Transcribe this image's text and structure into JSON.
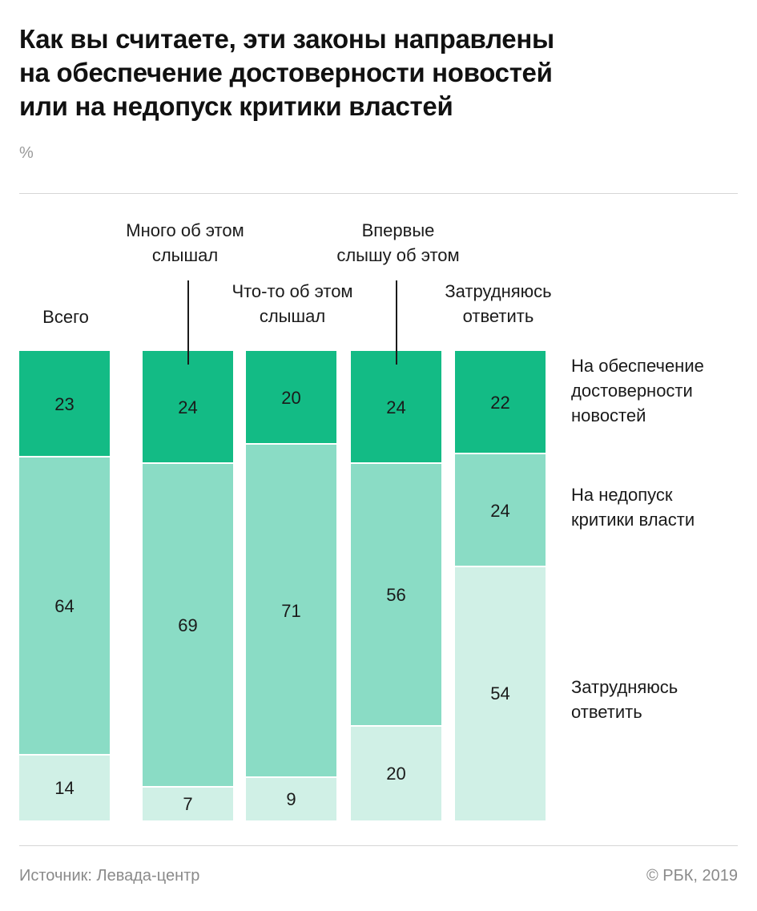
{
  "header": {
    "title_lines": [
      "Как вы считаете,  эти законы направлены",
      "на обеспечение достоверности новостей",
      "или на недопуск критики властей"
    ],
    "unit": "%"
  },
  "footer": {
    "source": "Источник: Левада-центр",
    "copyright": "© РБК, 2019"
  },
  "chart_data": {
    "type": "bar",
    "stacked": true,
    "orientation": "vertical",
    "categories": [
      [
        "Всего"
      ],
      [
        "Много об этом",
        "слышал"
      ],
      [
        "Что-то об этом",
        "слышал"
      ],
      [
        "Впервые",
        "слышу об этом"
      ],
      [
        "Затрудняюсь",
        "ответить"
      ]
    ],
    "series": [
      {
        "name": [
          "На обеспечение",
          "достоверности",
          "новостей"
        ],
        "values": [
          23,
          24,
          20,
          24,
          22
        ],
        "color": "#13bb85"
      },
      {
        "name": [
          "На недопуск",
          "критики власти"
        ],
        "values": [
          64,
          69,
          71,
          56,
          24
        ],
        "color": "#8adcc5"
      },
      {
        "name": [
          "Затрудняюсь",
          "ответить"
        ],
        "values": [
          14,
          7,
          9,
          20,
          54
        ],
        "color": "#d0f0e6"
      }
    ],
    "legend_position": "right",
    "grid": false
  }
}
